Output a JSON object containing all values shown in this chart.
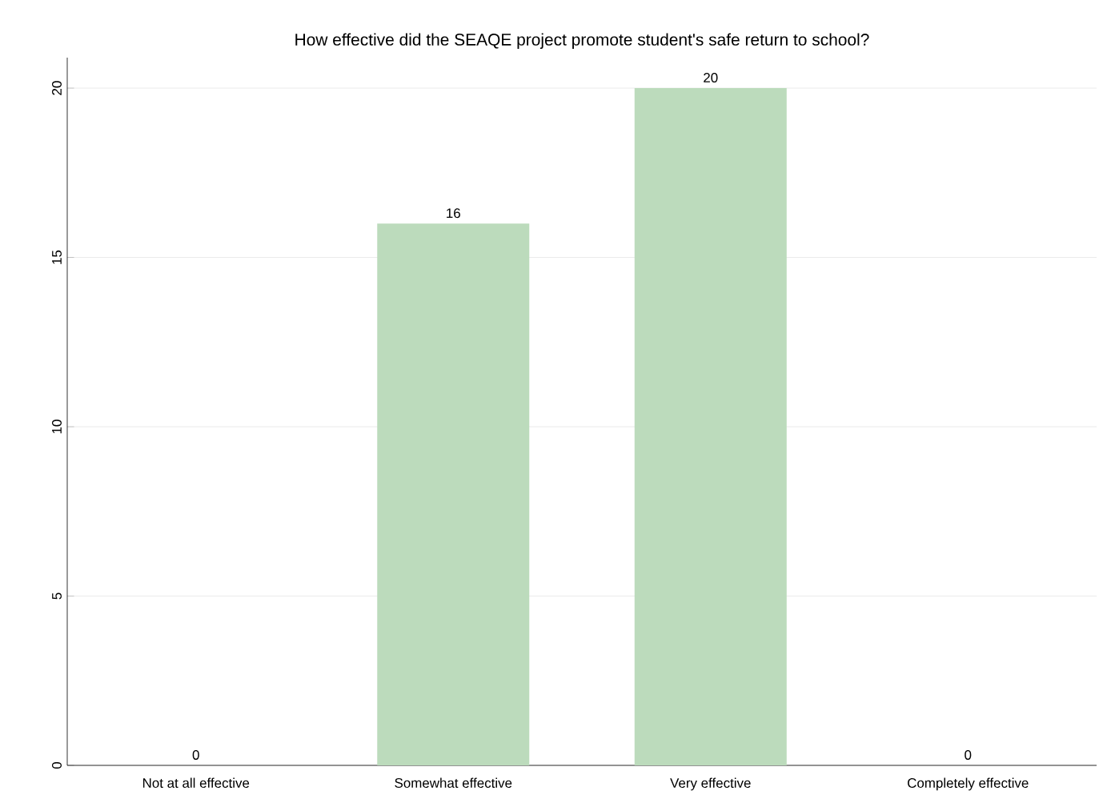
{
  "chart_data": {
    "type": "bar",
    "title": "How effective did the SEAQE project promote student's safe return to school?",
    "categories": [
      "Not at all effective",
      "Somewhat effective",
      "Very effective",
      "Completely effective"
    ],
    "values": [
      0,
      16,
      20,
      0
    ],
    "color": "#bcdbbc",
    "ylim": [
      0,
      20.9
    ],
    "yticks": [
      0,
      5,
      10,
      15,
      20
    ],
    "grid": "y",
    "data_labels": true
  }
}
